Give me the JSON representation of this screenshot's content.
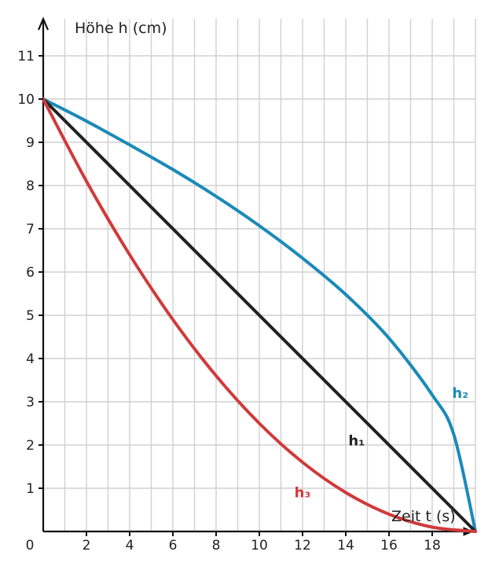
{
  "chart_data": {
    "type": "line",
    "ylabel": "Höhe h (cm)",
    "xlabel": "Zeit t (s)",
    "origin_label": "0",
    "xlim": [
      0,
      20
    ],
    "ylim": [
      0,
      11.5
    ],
    "grid": true,
    "x_ticks": [
      2,
      4,
      6,
      8,
      10,
      12,
      14,
      16,
      18
    ],
    "y_ticks": [
      1,
      2,
      3,
      4,
      5,
      6,
      7,
      8,
      9,
      10,
      11
    ],
    "colors": {
      "h1": "#222222",
      "h2": "#1b8ab8",
      "h3": "#d03a3a",
      "grid": "#d0d0d0",
      "axis": "#111111"
    },
    "series": [
      {
        "name": "h₁",
        "label_at": [
          14.5,
          2.1
        ],
        "x": [
          0,
          20
        ],
        "y": [
          10,
          0
        ]
      },
      {
        "name": "h₂",
        "label_at": [
          19.3,
          3.2
        ],
        "x": [
          0,
          2,
          4,
          6,
          8,
          10,
          12,
          14,
          16,
          18,
          19,
          20
        ],
        "y": [
          10,
          9.49,
          8.94,
          8.37,
          7.75,
          7.07,
          6.32,
          5.48,
          4.47,
          3.16,
          2.24,
          0
        ]
      },
      {
        "name": "h₃",
        "label_at": [
          12.0,
          0.9
        ],
        "x": [
          0,
          2,
          4,
          6,
          8,
          10,
          12,
          14,
          16,
          18,
          20
        ],
        "y": [
          10,
          8.1,
          6.4,
          4.9,
          3.6,
          2.5,
          1.6,
          0.9,
          0.4,
          0.1,
          0
        ]
      }
    ]
  }
}
